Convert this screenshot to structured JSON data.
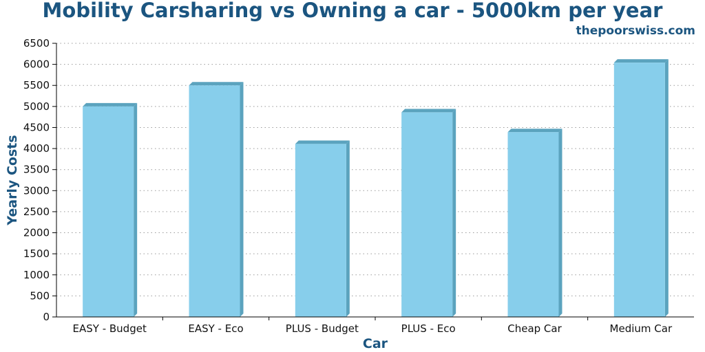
{
  "chart_data": {
    "type": "bar",
    "title": "Mobility Carsharing vs Owning a car - 5000km per year",
    "subtitle": "thepoorswiss.com",
    "xlabel": "Car",
    "ylabel": "Yearly Costs",
    "categories": [
      "EASY - Budget",
      "EASY - Eco",
      "PLUS - Budget",
      "PLUS - Eco",
      "Cheap Car",
      "Medium Car"
    ],
    "values": [
      5000,
      5500,
      4110,
      4860,
      4390,
      6040
    ],
    "ylim": [
      0,
      6500
    ],
    "yticks": [
      0,
      500,
      1000,
      1500,
      2000,
      2500,
      3000,
      3500,
      4000,
      4500,
      5000,
      5500,
      6000,
      6500
    ],
    "grid": true,
    "legend": "none",
    "colors": {
      "bar_face": "#87ceeb",
      "bar_side": "#5ba3be",
      "title": "#1b5580"
    }
  }
}
